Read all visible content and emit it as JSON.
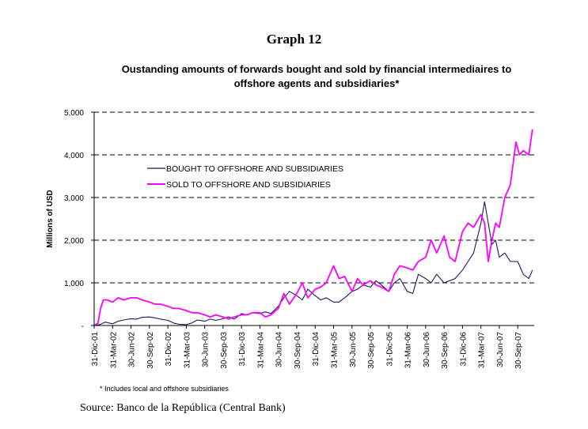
{
  "graph_number": "Graph 12",
  "footnote": "* Includes local and offshore subsidiaries",
  "source": "Source: Banco de la República  (Central Bank)",
  "chart_data": {
    "type": "line",
    "title": "Oustanding amounts of forwards bought and sold by financial intermediaires to offshore agents and subsidiaries*",
    "title_lines": [
      "Oustanding amounts of forwards bought and sold by financial intermediaires to",
      "offshore agents and subsidiaries*"
    ],
    "xlabel": "",
    "ylabel": "Millions of USD",
    "ylim": [
      0,
      5000
    ],
    "yticks": [
      0,
      1000,
      2000,
      3000,
      4000,
      5000
    ],
    "ytick_labels": [
      "-",
      "1,000",
      "2,000",
      "3,000",
      "4,000",
      "5,000"
    ],
    "grid": "horizontal dashed",
    "x_unit": "quarters since 31-Dic-01",
    "xlim": [
      0,
      23.9
    ],
    "xtick_labels": [
      "31-Dic-01",
      "31-Mar-02",
      "30-Jun-02",
      "30-Sep-02",
      "31-Dic-02",
      "31-Mar-03",
      "30-Jun-03",
      "30-Sep-03",
      "31-Dic-03",
      "31-Mar-04",
      "30-Jun-04",
      "30-Sep-04",
      "31-Dic-04",
      "31-Mar-05",
      "30-Jun-05",
      "30-Sep-05",
      "31-Dic-05",
      "31-Mar-06",
      "30-Jun-06",
      "30-Sep-06",
      "31-Dic-06",
      "31-Mar-07",
      "30-Jun-07",
      "30-Sep-07"
    ],
    "legend_position": "upper-left",
    "series": [
      {
        "name": "BOUGHT TO OFFSHORE AND SUBSIDIARIES",
        "color": "#1a1a5e",
        "x": [
          0,
          0.3,
          0.6,
          0.8,
          1.0,
          1.3,
          1.6,
          2.0,
          2.3,
          2.6,
          3.0,
          3.3,
          3.6,
          4.0,
          4.3,
          4.6,
          5.0,
          5.3,
          5.6,
          6.0,
          6.3,
          6.6,
          7.0,
          7.3,
          7.6,
          8.0,
          8.3,
          8.6,
          9.0,
          9.3,
          9.6,
          10.0,
          10.3,
          10.6,
          11.0,
          11.3,
          11.6,
          12.0,
          12.3,
          12.6,
          13.0,
          13.3,
          13.6,
          14.0,
          14.3,
          14.6,
          15.0,
          15.3,
          15.6,
          16.0,
          16.3,
          16.6,
          17.0,
          17.3,
          17.6,
          18.0,
          18.3,
          18.6,
          19.0,
          19.3,
          19.6,
          20.0,
          20.3,
          20.6,
          21.0,
          21.2,
          21.4,
          21.6,
          21.8,
          22.0,
          22.3,
          22.6,
          23.0,
          23.3,
          23.6,
          23.8
        ],
        "values": [
          0,
          20,
          80,
          60,
          40,
          100,
          130,
          160,
          150,
          190,
          200,
          180,
          150,
          120,
          60,
          30,
          20,
          60,
          130,
          100,
          150,
          120,
          160,
          200,
          150,
          280,
          250,
          300,
          280,
          320,
          280,
          450,
          650,
          800,
          700,
          600,
          850,
          700,
          600,
          650,
          550,
          550,
          650,
          800,
          850,
          950,
          900,
          1050,
          950,
          800,
          1000,
          1100,
          800,
          750,
          1200,
          1100,
          1000,
          1200,
          1000,
          1050,
          1100,
          1300,
          1500,
          1700,
          2400,
          2900,
          2400,
          1900,
          2000,
          1600,
          1700,
          1500,
          1500,
          1200,
          1100,
          1300
        ]
      },
      {
        "name": "SOLD TO OFFSHORE AND SUBSIDIARIES",
        "color": "#ff00ff",
        "x": [
          0,
          0.2,
          0.35,
          0.5,
          0.7,
          1.0,
          1.3,
          1.6,
          2.0,
          2.3,
          2.6,
          3.0,
          3.3,
          3.6,
          4.0,
          4.3,
          4.6,
          5.0,
          5.3,
          5.6,
          6.0,
          6.3,
          6.6,
          7.0,
          7.3,
          7.6,
          8.0,
          8.3,
          8.6,
          9.0,
          9.3,
          9.6,
          10.0,
          10.3,
          10.6,
          11.0,
          11.3,
          11.6,
          12.0,
          12.3,
          12.6,
          13.0,
          13.3,
          13.6,
          14.0,
          14.3,
          14.6,
          15.0,
          15.3,
          15.6,
          16.0,
          16.3,
          16.6,
          17.0,
          17.3,
          17.6,
          18.0,
          18.3,
          18.6,
          19.0,
          19.3,
          19.6,
          20.0,
          20.3,
          20.6,
          21.0,
          21.2,
          21.4,
          21.6,
          21.8,
          22.0,
          22.3,
          22.6,
          22.9,
          23.1,
          23.3,
          23.6,
          23.8
        ],
        "values": [
          0,
          50,
          400,
          600,
          600,
          550,
          650,
          600,
          650,
          650,
          600,
          550,
          500,
          500,
          450,
          400,
          400,
          350,
          300,
          300,
          250,
          200,
          250,
          200,
          150,
          200,
          250,
          250,
          300,
          300,
          200,
          250,
          400,
          750,
          500,
          750,
          1000,
          650,
          850,
          900,
          1000,
          1400,
          1100,
          1150,
          800,
          1100,
          950,
          1050,
          950,
          900,
          800,
          1200,
          1400,
          1350,
          1300,
          1500,
          1600,
          2000,
          1700,
          2100,
          1600,
          1500,
          2200,
          2400,
          2300,
          2600,
          2400,
          1500,
          2000,
          2400,
          2300,
          3000,
          3300,
          4300,
          4000,
          4100,
          4000,
          4600
        ]
      }
    ]
  }
}
